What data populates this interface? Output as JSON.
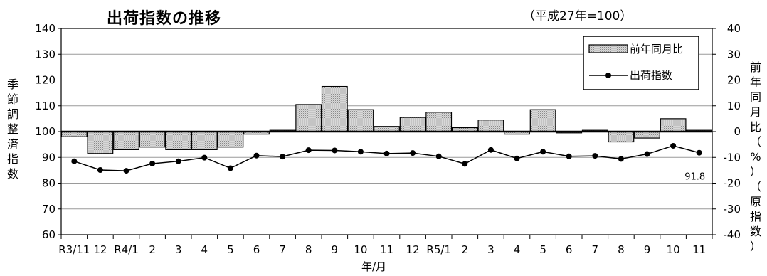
{
  "title": "出荷指数の推移",
  "note": "（平成27年=100）",
  "chart_data": {
    "type": "bar+line",
    "title": "出荷指数の推移",
    "subtitle": "（平成27年=100）",
    "xlabel": "年/月",
    "ylabel_left": "季節調整済指数",
    "ylabel_right": "前年同月比（%）（原指数）",
    "categories": [
      "R3/11",
      "12",
      "R4/1",
      "2",
      "3",
      "4",
      "5",
      "6",
      "7",
      "8",
      "9",
      "10",
      "11",
      "12",
      "R5/1",
      "2",
      "3",
      "4",
      "5",
      "6",
      "7",
      "8",
      "9",
      "10",
      "11"
    ],
    "ylim_left": [
      60,
      140
    ],
    "yticks_left": [
      60,
      70,
      80,
      90,
      100,
      110,
      120,
      130,
      140
    ],
    "ylim_right": [
      -40,
      40
    ],
    "yticks_right": [
      -40,
      -30,
      -20,
      -10,
      0,
      10,
      20,
      30,
      40
    ],
    "grid": true,
    "legend_position": "top-right",
    "series": [
      {
        "name": "前年同月比",
        "type": "bar",
        "axis": "right",
        "color": "#c8c8c8",
        "values": [
          -2,
          -8.5,
          -7,
          -6,
          -7,
          -7,
          -6,
          -1,
          0.5,
          10.5,
          17.5,
          8.5,
          2,
          5.5,
          7.5,
          1.5,
          4.5,
          -1,
          8.5,
          -0.5,
          0.5,
          -4,
          -2.5,
          5,
          0.5
        ]
      },
      {
        "name": "出荷指数",
        "type": "line",
        "axis": "left",
        "color": "#000000",
        "values": [
          88.5,
          85.1,
          84.8,
          87.6,
          88.5,
          89.9,
          85.8,
          90.7,
          90.3,
          92.8,
          92.7,
          92.2,
          91.5,
          91.7,
          90.4,
          87.5,
          92.9,
          89.6,
          92.2,
          90.4,
          90.6,
          89.4,
          91.3,
          94.5,
          91.8
        ]
      }
    ],
    "annotations": [
      "91.8"
    ]
  }
}
